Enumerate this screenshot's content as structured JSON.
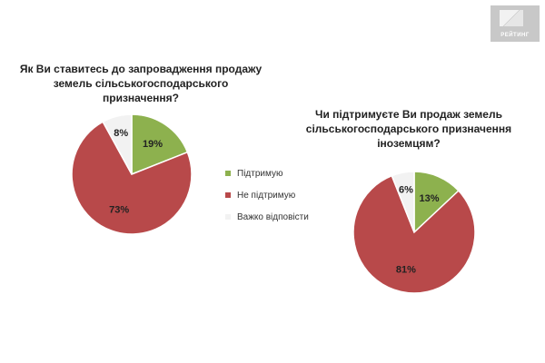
{
  "logo": {
    "text": "РЕЙТИНГ"
  },
  "colors": {
    "support": "#8db14e",
    "not_support": "#b8494a",
    "hard_to_say": "#f2f2f2",
    "label": "#222222"
  },
  "legend": [
    {
      "label": "Підтримую",
      "color": "#8db14e"
    },
    {
      "label": "Не підтримую",
      "color": "#b8494a"
    },
    {
      "label": "Важко відповісти",
      "color": "#f2f2f2"
    }
  ],
  "chart_data": [
    {
      "type": "pie",
      "title": "Як Ви ставитесь до запровадження продажу земель сільськогосподарського призначення?",
      "categories": [
        "Підтримую",
        "Не підтримую",
        "Важко відповісти"
      ],
      "values": [
        19,
        73,
        8
      ],
      "labels": [
        "19%",
        "73%",
        "8%"
      ],
      "colors": [
        "#8db14e",
        "#b8494a",
        "#f2f2f2"
      ],
      "legend": "right"
    },
    {
      "type": "pie",
      "title": "Чи підтримуєте Ви продаж земель сільськогосподарського призначення іноземцям?",
      "categories": [
        "Підтримую",
        "Не підтримую",
        "Важко відповісти"
      ],
      "values": [
        13,
        81,
        6
      ],
      "labels": [
        "13%",
        "81%",
        "6%"
      ],
      "colors": [
        "#8db14e",
        "#b8494a",
        "#f2f2f2"
      ]
    }
  ]
}
